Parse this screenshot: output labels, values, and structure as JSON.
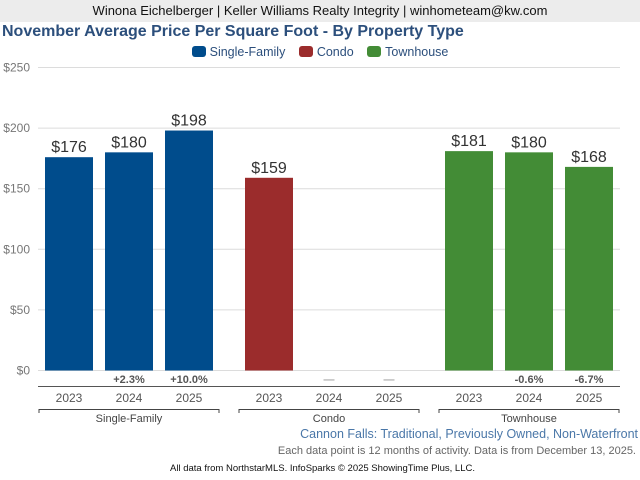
{
  "header": {
    "agent_line": "Winona Eichelberger | Keller Williams Realty Integrity | winhometeam@kw.com"
  },
  "chart_data": {
    "type": "bar",
    "title": "November Average Price Per Square Foot - By Property Type",
    "xlabel": "",
    "ylabel": "",
    "ylim": [
      0,
      250
    ],
    "yticks": [
      0,
      50,
      100,
      150,
      200,
      250
    ],
    "ytick_labels": [
      "$0",
      "$50",
      "$100",
      "$150",
      "$200",
      "$250"
    ],
    "grid": true,
    "legend_position": "top-center",
    "categories": [
      "2023",
      "2024",
      "2025"
    ],
    "series": [
      {
        "name": "Single-Family",
        "color": "#004c8c",
        "values": [
          176,
          180,
          198
        ],
        "value_labels": [
          "$176",
          "$180",
          "$198"
        ],
        "changes": [
          "",
          "+2.3%",
          "+10.0%"
        ]
      },
      {
        "name": "Condo",
        "color": "#9b2c2c",
        "values": [
          159,
          null,
          null
        ],
        "value_labels": [
          "$159",
          "",
          ""
        ],
        "changes": [
          "",
          "—",
          "—"
        ]
      },
      {
        "name": "Townhouse",
        "color": "#438c36",
        "values": [
          181,
          180,
          168
        ],
        "value_labels": [
          "$181",
          "$180",
          "$168"
        ],
        "changes": [
          "",
          "-0.6%",
          "-6.7%"
        ]
      }
    ]
  },
  "subtitle": "Cannon Falls: Traditional, Previously Owned, Non-Waterfront",
  "note": "Each data point is 12 months of activity. Data is from December 13, 2025.",
  "footer": "All data from NorthstarMLS. InfoSparks © 2025 ShowingTime Plus, LLC."
}
